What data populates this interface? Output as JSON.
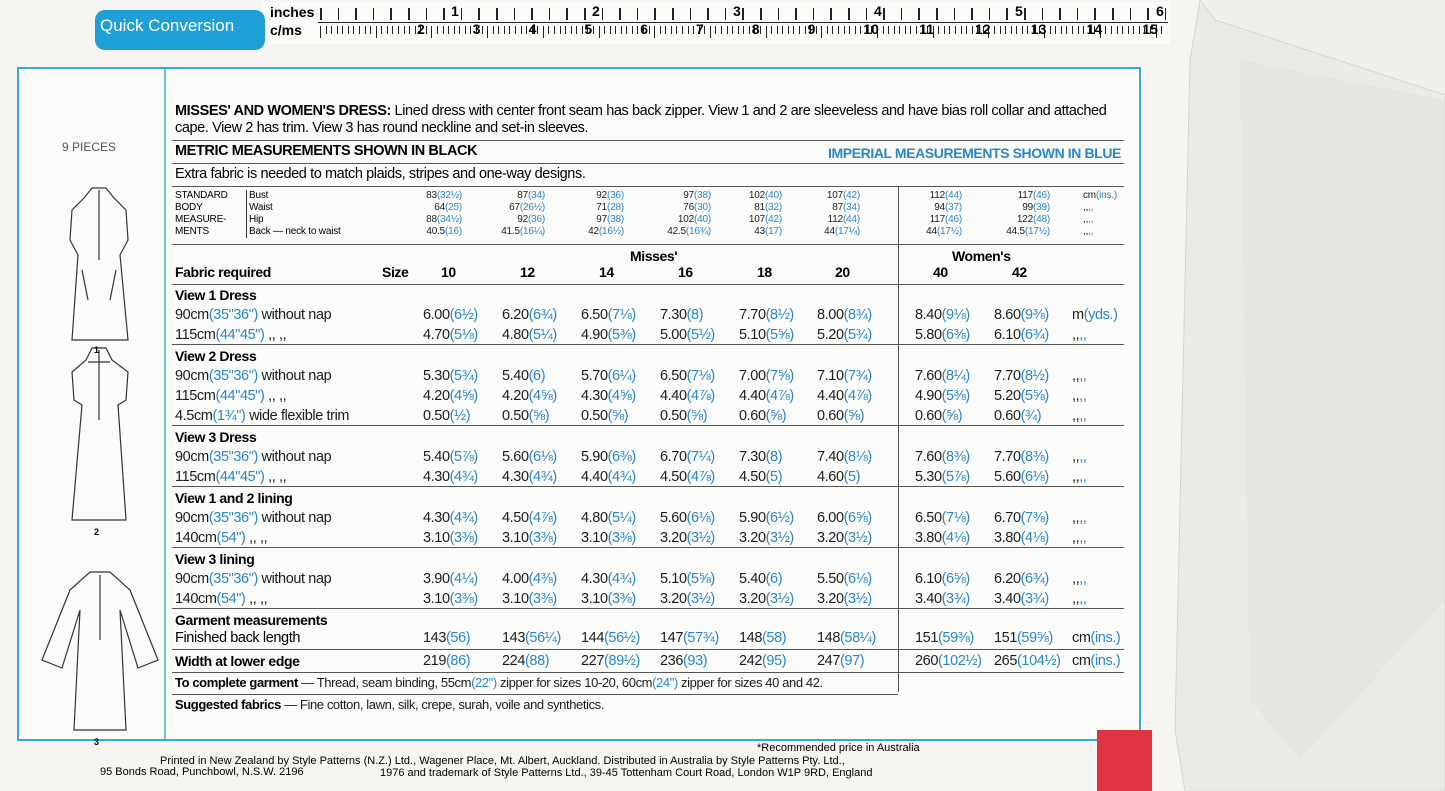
{
  "ruler": {
    "quick_conversion": "Quick Conversion",
    "inches_label": "inches",
    "cms_label": "c/ms",
    "inch_numbers": [
      "1",
      "2",
      "3",
      "4",
      "5",
      "6"
    ],
    "cm_numbers": [
      "2",
      "3",
      "4",
      "5",
      "6",
      "7",
      "8",
      "9",
      "10",
      "11",
      "12",
      "13",
      "14",
      "15"
    ]
  },
  "sidebar": {
    "pieces": "9 PIECES",
    "figures": [
      "1",
      "2",
      "3"
    ]
  },
  "description": {
    "title": "MISSES' AND WOMEN'S DRESS:",
    "text": "Lined dress with center front seam has back zipper. View 1 and 2 are sleeveless and have bias roll collar and attached",
    "text2": "cape. View 2 has trim. View 3 has round neckline and set-in sleeves."
  },
  "metric_note": "METRIC MEASUREMENTS SHOWN IN BLACK",
  "imperial_note": "IMPERIAL MEASUREMENTS SHOWN IN BLUE",
  "extra_fabric": "Extra fabric is needed to match plaids, stripes and one-way designs.",
  "body_measurements": {
    "label": [
      "STANDARD",
      "BODY",
      "MEASURE-",
      "MENTS"
    ],
    "rows": [
      {
        "name": "Bust",
        "values": [
          {
            "m": "83",
            "i": "(32½)"
          },
          {
            "m": "87",
            "i": "(34)"
          },
          {
            "m": "92",
            "i": "(36)"
          },
          {
            "m": "97",
            "i": "(38)"
          },
          {
            "m": "102",
            "i": "(40)"
          },
          {
            "m": "107",
            "i": "(42)"
          },
          {
            "m": "112",
            "i": "(44)"
          },
          {
            "m": "117",
            "i": "(46)"
          }
        ],
        "unit": {
          "m": "cm",
          "i": "(ins.)"
        }
      },
      {
        "name": "Waist",
        "values": [
          {
            "m": "64",
            "i": "(25)"
          },
          {
            "m": "67",
            "i": "(26½)"
          },
          {
            "m": "71",
            "i": "(28)"
          },
          {
            "m": "76",
            "i": "(30)"
          },
          {
            "m": "81",
            "i": "(32)"
          },
          {
            "m": "87",
            "i": "(34)"
          },
          {
            "m": "94",
            "i": "(37)"
          },
          {
            "m": "99",
            "i": "(39)"
          }
        ],
        "unit": {
          "m": ",,",
          "i": ",,"
        }
      },
      {
        "name": "Hip",
        "values": [
          {
            "m": "88",
            "i": "(34½)"
          },
          {
            "m": "92",
            "i": "(36)"
          },
          {
            "m": "97",
            "i": "(38)"
          },
          {
            "m": "102",
            "i": "(40)"
          },
          {
            "m": "107",
            "i": "(42)"
          },
          {
            "m": "112",
            "i": "(44)"
          },
          {
            "m": "117",
            "i": "(46)"
          },
          {
            "m": "122",
            "i": "(48)"
          }
        ],
        "unit": {
          "m": ",,",
          "i": ",,"
        }
      },
      {
        "name": "Back — neck to waist",
        "values": [
          {
            "m": "40.5",
            "i": "(16)"
          },
          {
            "m": "41.5",
            "i": "(16¼)"
          },
          {
            "m": "42",
            "i": "(16½)"
          },
          {
            "m": "42.5",
            "i": "(16¾)"
          },
          {
            "m": "43",
            "i": "(17)"
          },
          {
            "m": "44",
            "i": "(17¼)"
          },
          {
            "m": "44",
            "i": "(17½)"
          },
          {
            "m": "44.5",
            "i": "(17½)"
          }
        ],
        "unit": {
          "m": ",,",
          "i": ",,"
        }
      }
    ]
  },
  "fabric": {
    "group_misses": "Misses'",
    "group_women": "Women's",
    "header": "Fabric required",
    "size_label": "Size",
    "sizes": [
      "10",
      "12",
      "14",
      "16",
      "18",
      "20",
      "40",
      "42"
    ],
    "groups": [
      {
        "title": "View 1  Dress",
        "rows": [
          {
            "label": {
              "m": "90cm",
              "i": "(35\"36\")",
              "t": "without nap"
            },
            "values": [
              {
                "m": "6.00",
                "i": "(6½)"
              },
              {
                "m": "6.20",
                "i": "(6¾)"
              },
              {
                "m": "6.50",
                "i": "(7⅛)"
              },
              {
                "m": "7.30",
                "i": "(8)"
              },
              {
                "m": "7.70",
                "i": "(8½)"
              },
              {
                "m": "8.00",
                "i": "(8¾)"
              },
              {
                "m": "8.40",
                "i": "(9⅛)"
              },
              {
                "m": "8.60",
                "i": "(9⅜)"
              }
            ],
            "unit": {
              "m": "m",
              "i": "(yds.)"
            }
          },
          {
            "label": {
              "m": "115cm",
              "i": "(44\"45\")",
              "t": ",,   ,,"
            },
            "values": [
              {
                "m": "4.70",
                "i": "(5⅛)"
              },
              {
                "m": "4.80",
                "i": "(5¼)"
              },
              {
                "m": "4.90",
                "i": "(5⅜)"
              },
              {
                "m": "5.00",
                "i": "(5½)"
              },
              {
                "m": "5.10",
                "i": "(5⅝)"
              },
              {
                "m": "5.20",
                "i": "(5¾)"
              },
              {
                "m": "5.80",
                "i": "(6⅜)"
              },
              {
                "m": "6.10",
                "i": "(6¾)"
              }
            ],
            "unit": {
              "m": ",,",
              "i": ",,"
            }
          }
        ]
      },
      {
        "title": "View 2  Dress",
        "rows": [
          {
            "label": {
              "m": "90cm",
              "i": "(35\"36\")",
              "t": "without nap"
            },
            "values": [
              {
                "m": "5.30",
                "i": "(5¾)"
              },
              {
                "m": "5.40",
                "i": "(6)"
              },
              {
                "m": "5.70",
                "i": "(6¼)"
              },
              {
                "m": "6.50",
                "i": "(7⅛)"
              },
              {
                "m": "7.00",
                "i": "(7⅝)"
              },
              {
                "m": "7.10",
                "i": "(7¾)"
              },
              {
                "m": "7.60",
                "i": "(8¼)"
              },
              {
                "m": "7.70",
                "i": "(8½)"
              }
            ],
            "unit": {
              "m": ",,",
              "i": ",,"
            }
          },
          {
            "label": {
              "m": "115cm",
              "i": "(44\"45\")",
              "t": ",,   ,,"
            },
            "values": [
              {
                "m": "4.20",
                "i": "(4⅝)"
              },
              {
                "m": "4.20",
                "i": "(4⅝)"
              },
              {
                "m": "4.30",
                "i": "(4⅝)"
              },
              {
                "m": "4.40",
                "i": "(4⅞)"
              },
              {
                "m": "4.40",
                "i": "(4⅞)"
              },
              {
                "m": "4.40",
                "i": "(4⅞)"
              },
              {
                "m": "4.90",
                "i": "(5⅜)"
              },
              {
                "m": "5.20",
                "i": "(5⅝)"
              }
            ],
            "unit": {
              "m": ",,",
              "i": ",,"
            }
          },
          {
            "label": {
              "m": "4.5cm",
              "i": "(1¾\")",
              "t": "wide flexible trim"
            },
            "values": [
              {
                "m": "0.50",
                "i": "(½)"
              },
              {
                "m": "0.50",
                "i": "(⅝)"
              },
              {
                "m": "0.50",
                "i": "(⅝)"
              },
              {
                "m": "0.50",
                "i": "(⅝)"
              },
              {
                "m": "0.60",
                "i": "(⅝)"
              },
              {
                "m": "0.60",
                "i": "(⅝)"
              },
              {
                "m": "0.60",
                "i": "(⅝)"
              },
              {
                "m": "0.60",
                "i": "(¾)"
              }
            ],
            "unit": {
              "m": ",,",
              "i": ",,"
            }
          }
        ]
      },
      {
        "title": "View 3  Dress",
        "rows": [
          {
            "label": {
              "m": "90cm",
              "i": "(35\"36\")",
              "t": "without nap"
            },
            "values": [
              {
                "m": "5.40",
                "i": "(5⅞)"
              },
              {
                "m": "5.60",
                "i": "(6⅛)"
              },
              {
                "m": "5.90",
                "i": "(6⅜)"
              },
              {
                "m": "6.70",
                "i": "(7¼)"
              },
              {
                "m": "7.30",
                "i": "(8)"
              },
              {
                "m": "7.40",
                "i": "(8⅛)"
              },
              {
                "m": "7.60",
                "i": "(8⅜)"
              },
              {
                "m": "7.70",
                "i": "(8⅜)"
              }
            ],
            "unit": {
              "m": ",,",
              "i": ",,"
            }
          },
          {
            "label": {
              "m": "115cm",
              "i": "(44\"45\")",
              "t": ",,   ,,"
            },
            "values": [
              {
                "m": "4.30",
                "i": "(4¾)"
              },
              {
                "m": "4.30",
                "i": "(4¾)"
              },
              {
                "m": "4.40",
                "i": "(4¾)"
              },
              {
                "m": "4.50",
                "i": "(4⅞)"
              },
              {
                "m": "4.50",
                "i": "(5)"
              },
              {
                "m": "4.60",
                "i": "(5)"
              },
              {
                "m": "5.30",
                "i": "(5⅞)"
              },
              {
                "m": "5.60",
                "i": "(6⅛)"
              }
            ],
            "unit": {
              "m": ",,",
              "i": ",,"
            }
          }
        ]
      },
      {
        "title": "View 1 and 2 lining",
        "rows": [
          {
            "label": {
              "m": "90cm",
              "i": "(35\"36\")",
              "t": "without nap"
            },
            "values": [
              {
                "m": "4.30",
                "i": "(4¾)"
              },
              {
                "m": "4.50",
                "i": "(4⅞)"
              },
              {
                "m": "4.80",
                "i": "(5¼)"
              },
              {
                "m": "5.60",
                "i": "(6⅛)"
              },
              {
                "m": "5.90",
                "i": "(6½)"
              },
              {
                "m": "6.00",
                "i": "(6⅝)"
              },
              {
                "m": "6.50",
                "i": "(7⅛)"
              },
              {
                "m": "6.70",
                "i": "(7⅜)"
              }
            ],
            "unit": {
              "m": ",,",
              "i": ",,"
            }
          },
          {
            "label": {
              "m": "140cm",
              "i": "(54\")",
              "t": ",,   ,,"
            },
            "values": [
              {
                "m": "3.10",
                "i": "(3⅜)"
              },
              {
                "m": "3.10",
                "i": "(3⅜)"
              },
              {
                "m": "3.10",
                "i": "(3⅜)"
              },
              {
                "m": "3.20",
                "i": "(3½)"
              },
              {
                "m": "3.20",
                "i": "(3½)"
              },
              {
                "m": "3.20",
                "i": "(3½)"
              },
              {
                "m": "3.80",
                "i": "(4⅛)"
              },
              {
                "m": "3.80",
                "i": "(4⅛)"
              }
            ],
            "unit": {
              "m": ",,",
              "i": ",,"
            }
          }
        ]
      },
      {
        "title": "View 3 lining",
        "rows": [
          {
            "label": {
              "m": "90cm",
              "i": "(35\"36\")",
              "t": "without nap"
            },
            "values": [
              {
                "m": "3.90",
                "i": "(4¼)"
              },
              {
                "m": "4.00",
                "i": "(4⅜)"
              },
              {
                "m": "4.30",
                "i": "(4¾)"
              },
              {
                "m": "5.10",
                "i": "(5⅝)"
              },
              {
                "m": "5.40",
                "i": "(6)"
              },
              {
                "m": "5.50",
                "i": "(6⅛)"
              },
              {
                "m": "6.10",
                "i": "(6⅝)"
              },
              {
                "m": "6.20",
                "i": "(6¾)"
              }
            ],
            "unit": {
              "m": ",,",
              "i": ",,"
            }
          },
          {
            "label": {
              "m": "140cm",
              "i": "(54\")",
              "t": ",,   ,,"
            },
            "values": [
              {
                "m": "3.10",
                "i": "(3⅜)"
              },
              {
                "m": "3.10",
                "i": "(3⅜)"
              },
              {
                "m": "3.10",
                "i": "(3⅜)"
              },
              {
                "m": "3.20",
                "i": "(3½)"
              },
              {
                "m": "3.20",
                "i": "(3½)"
              },
              {
                "m": "3.20",
                "i": "(3½)"
              },
              {
                "m": "3.40",
                "i": "(3¾)"
              },
              {
                "m": "3.40",
                "i": "(3¾)"
              }
            ],
            "unit": {
              "m": ",,",
              "i": ",,"
            }
          }
        ]
      }
    ]
  },
  "garment": {
    "title": "Garment measurements",
    "rows": [
      {
        "label": "Finished back length",
        "values": [
          {
            "m": "143",
            "i": "(56)"
          },
          {
            "m": "143",
            "i": "(56¼)"
          },
          {
            "m": "144",
            "i": "(56½)"
          },
          {
            "m": "147",
            "i": "(57¾)"
          },
          {
            "m": "148",
            "i": "(58)"
          },
          {
            "m": "148",
            "i": "(58¼)"
          },
          {
            "m": "151",
            "i": "(59⅜)"
          },
          {
            "m": "151",
            "i": "(59⅝)"
          }
        ],
        "unit": {
          "m": "cm",
          "i": "(ins.)"
        }
      }
    ],
    "width": {
      "label": "Width at lower edge",
      "values": [
        {
          "m": "219",
          "i": "(86)"
        },
        {
          "m": "224",
          "i": "(88)"
        },
        {
          "m": "227",
          "i": "(89½)"
        },
        {
          "m": "236",
          "i": "(93)"
        },
        {
          "m": "242",
          "i": "(95)"
        },
        {
          "m": "247",
          "i": "(97)"
        },
        {
          "m": "260",
          "i": "(102½)"
        },
        {
          "m": "265",
          "i": "(104½)"
        }
      ],
      "unit": {
        "m": "cm",
        "i": "(ins.)"
      }
    }
  },
  "notes": [
    {
      "bold": "To complete garment",
      "parts": [
        {
          "text": " — Thread, seam binding, 55cm",
          "color": "black"
        },
        {
          "text": "(22\")",
          "color": "blue"
        },
        {
          "text": " zipper for sizes 10-20, 60cm",
          "color": "black"
        },
        {
          "text": "(24\")",
          "color": "blue"
        },
        {
          "text": " zipper for sizes 40 and 42.",
          "color": "black"
        }
      ]
    },
    {
      "bold": "Suggested fabrics",
      "parts": [
        {
          "text": " — Fine cotton, lawn, silk, crepe, surah, voile and synthetics.",
          "color": "black"
        }
      ]
    }
  ],
  "footer": {
    "price_note": "*Recommended price in Australia",
    "line1": "Printed in New Zealand by Style Patterns (N.Z.) Ltd., Wagener Place, Mt. Albert, Auckland. Distributed in Australia by Style Patterns Pty. Ltd.,",
    "address": "95 Bonds Road, Punchbowl, N.S.W. 2196",
    "line2": "1976 and trademark of Style Patterns Ltd., 39-45 Tottenham Court Road, London W1P 9RD, England"
  }
}
